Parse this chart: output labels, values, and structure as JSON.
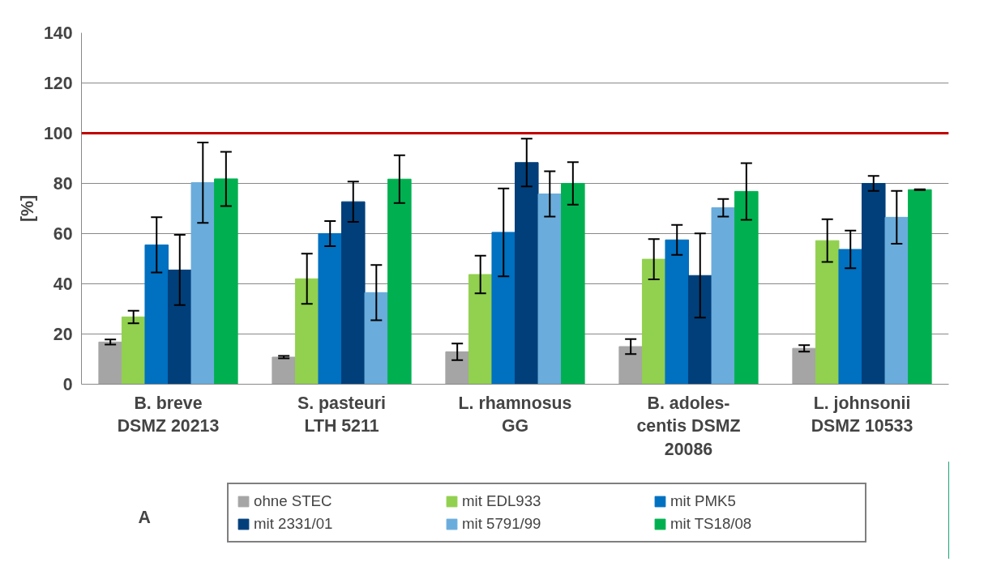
{
  "chart_data": {
    "type": "bar",
    "categories": [
      "B. breve\nDSMZ 20213",
      "S. pasteuri\nLTH 5211",
      "L. rhamnosus\nGG",
      "B. adoles-\ncentis DSMZ\n20086",
      "L. johnsonii\nDSMZ 10533"
    ],
    "ylabel": "[%]",
    "ylim": [
      0,
      140
    ],
    "yticks": [
      0,
      20,
      40,
      60,
      80,
      100,
      120,
      140
    ],
    "grid": "y",
    "legend": "bottom",
    "series": [
      {
        "name": "ohne STEC",
        "color": "#a5a5a5",
        "values": [
          16.8,
          10.8,
          12.9,
          15.0,
          14.3
        ],
        "errors": [
          1.0,
          0.5,
          3.3,
          3.0,
          1.3
        ]
      },
      {
        "name": "mit EDL933",
        "color": "#92d050",
        "values": [
          26.8,
          42.0,
          43.7,
          49.8,
          57.2
        ],
        "errors": [
          2.5,
          10.0,
          7.5,
          8.0,
          8.5
        ]
      },
      {
        "name": "mit PMK5",
        "color": "#0070c0",
        "values": [
          55.5,
          60.0,
          60.5,
          57.5,
          53.7
        ],
        "errors": [
          11.0,
          5.0,
          17.5,
          6.0,
          7.5
        ]
      },
      {
        "name": "mit 2331/01",
        "color": "#003f7a",
        "values": [
          45.5,
          72.7,
          88.3,
          43.3,
          80.0
        ],
        "errors": [
          14.0,
          8.0,
          9.5,
          16.8,
          3.0
        ]
      },
      {
        "name": "mit 5791/99",
        "color": "#6aacdc",
        "values": [
          80.3,
          36.5,
          75.8,
          70.3,
          66.5
        ],
        "errors": [
          16.0,
          11.0,
          9.0,
          3.5,
          10.5
        ]
      },
      {
        "name": "mit TS18/08",
        "color": "#00b050",
        "values": [
          81.8,
          81.7,
          80.0,
          76.8,
          77.5
        ],
        "errors": [
          10.8,
          9.5,
          8.5,
          11.3,
          0.2
        ]
      }
    ],
    "ref_lines": [
      {
        "axis": "y",
        "value": 100,
        "color": "#c00000"
      }
    ],
    "annotations": [
      "A"
    ]
  }
}
